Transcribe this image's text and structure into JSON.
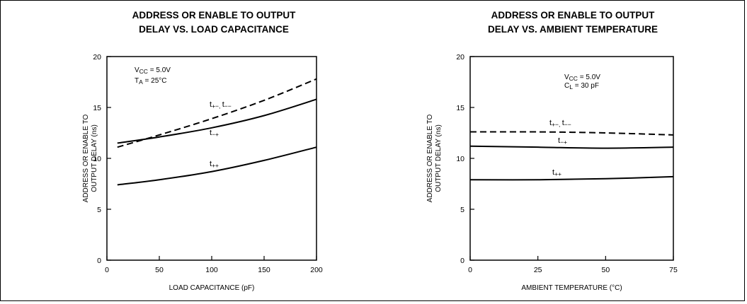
{
  "chart_data": [
    {
      "type": "line",
      "title_lines": [
        "ADDRESS OR ENABLE TO OUTPUT",
        "DELAY VS. LOAD CAPACITANCE"
      ],
      "xlabel": "LOAD CAPACITANCE (pF)",
      "ylabel_lines": [
        "ADDRESS OR ENABLE TO",
        "OUTPUT DELAY (ns)"
      ],
      "xlim": [
        0,
        200
      ],
      "ylim": [
        0,
        20
      ],
      "xticks": [
        0,
        50,
        100,
        150,
        200
      ],
      "yticks": [
        0,
        5,
        10,
        15,
        20
      ],
      "grid": false,
      "annotation": {
        "vcc": "V",
        "vcc_sub": "CC",
        "vcc_val": " = 5.0V",
        "ta": "T",
        "ta_sub": "A",
        "ta_val": " = 25°C"
      },
      "series": [
        {
          "name": "t+−, t−−",
          "label_main": "t",
          "label_sub": "+−, ",
          "label_main2": "t",
          "label_sub2": "−−",
          "dashed": true,
          "x": [
            10,
            50,
            100,
            150,
            200
          ],
          "y": [
            11.1,
            12.3,
            13.9,
            15.7,
            17.8
          ]
        },
        {
          "name": "t−+",
          "label_main": "t",
          "label_sub": "−+",
          "dashed": false,
          "x": [
            10,
            50,
            100,
            150,
            200
          ],
          "y": [
            11.5,
            12.1,
            13.0,
            14.2,
            15.8
          ]
        },
        {
          "name": "t++",
          "label_main": "t",
          "label_sub": "++",
          "dashed": false,
          "x": [
            10,
            50,
            100,
            150,
            200
          ],
          "y": [
            7.4,
            7.9,
            8.7,
            9.8,
            11.1
          ]
        }
      ]
    },
    {
      "type": "line",
      "title_lines": [
        "ADDRESS OR ENABLE TO OUTPUT",
        "DELAY VS. AMBIENT TEMPERATURE"
      ],
      "xlabel": "AMBIENT TEMPERATURE (°C)",
      "ylabel_lines": [
        "ADDRESS OR ENABLE TO",
        "OUTPUT DELAY (ns)"
      ],
      "xlim": [
        0,
        75
      ],
      "ylim": [
        0,
        20
      ],
      "xticks": [
        0,
        25,
        50,
        75
      ],
      "yticks": [
        0,
        5,
        10,
        15,
        20
      ],
      "grid": false,
      "annotation": {
        "vcc": "V",
        "vcc_sub": "CC",
        "vcc_val": " = 5.0V",
        "cl": "C",
        "cl_sub": "L",
        "cl_val": " = 30 pF"
      },
      "series": [
        {
          "name": "t+−, t−−",
          "label_main": "t",
          "label_sub": "+−, ",
          "label_main2": "t",
          "label_sub2": "−−",
          "dashed": true,
          "x": [
            0,
            25,
            50,
            75
          ],
          "y": [
            12.6,
            12.6,
            12.5,
            12.3
          ]
        },
        {
          "name": "t−+",
          "label_main": "t",
          "label_sub": "−+",
          "dashed": false,
          "x": [
            0,
            25,
            50,
            75
          ],
          "y": [
            11.2,
            11.1,
            11.0,
            11.1
          ]
        },
        {
          "name": "t++",
          "label_main": "t",
          "label_sub": "++",
          "dashed": false,
          "x": [
            0,
            25,
            50,
            75
          ],
          "y": [
            7.9,
            7.9,
            8.0,
            8.2
          ]
        }
      ]
    }
  ]
}
